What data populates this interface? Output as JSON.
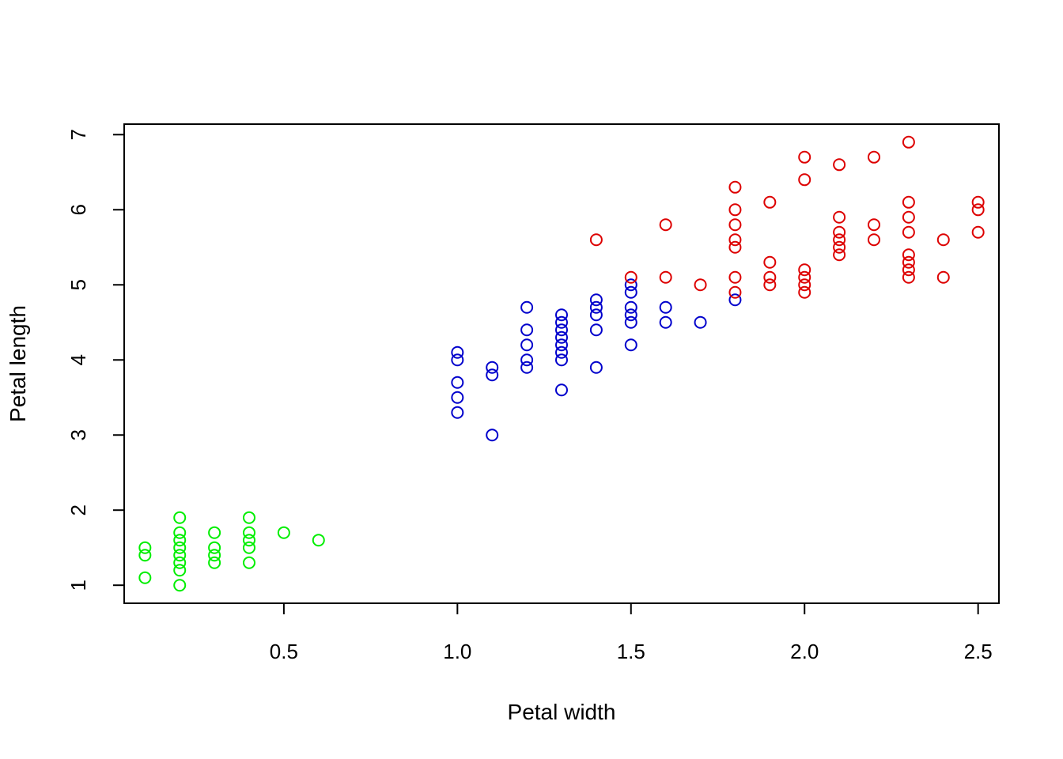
{
  "chart_data": {
    "type": "scatter",
    "title": "",
    "xlabel": "Petal width",
    "ylabel": "Petal length",
    "xlim": [
      0.04,
      2.56
    ],
    "ylim": [
      0.76,
      7.14
    ],
    "x_ticks": [
      0.5,
      1.0,
      1.5,
      2.0,
      2.5
    ],
    "x_tick_labels": [
      "0.5",
      "1.0",
      "1.5",
      "2.0",
      "2.5"
    ],
    "y_ticks": [
      1,
      2,
      3,
      4,
      5,
      6,
      7
    ],
    "y_tick_labels": [
      "1",
      "2",
      "3",
      "4",
      "5",
      "6",
      "7"
    ],
    "grid": false,
    "marker": "open-circle",
    "series": [
      {
        "color": "#00ee00",
        "points": [
          [
            0.1,
            1.1
          ],
          [
            0.1,
            1.4
          ],
          [
            0.1,
            1.5
          ],
          [
            0.2,
            1.0
          ],
          [
            0.2,
            1.2
          ],
          [
            0.2,
            1.3
          ],
          [
            0.2,
            1.4
          ],
          [
            0.2,
            1.5
          ],
          [
            0.2,
            1.6
          ],
          [
            0.2,
            1.7
          ],
          [
            0.2,
            1.9
          ],
          [
            0.3,
            1.3
          ],
          [
            0.3,
            1.4
          ],
          [
            0.3,
            1.5
          ],
          [
            0.3,
            1.7
          ],
          [
            0.4,
            1.3
          ],
          [
            0.4,
            1.5
          ],
          [
            0.4,
            1.6
          ],
          [
            0.4,
            1.7
          ],
          [
            0.4,
            1.9
          ],
          [
            0.5,
            1.7
          ],
          [
            0.6,
            1.6
          ]
        ]
      },
      {
        "color": "#0000cc",
        "points": [
          [
            1.0,
            3.3
          ],
          [
            1.0,
            3.5
          ],
          [
            1.0,
            3.7
          ],
          [
            1.0,
            4.0
          ],
          [
            1.0,
            4.1
          ],
          [
            1.1,
            3.0
          ],
          [
            1.1,
            3.8
          ],
          [
            1.1,
            3.9
          ],
          [
            1.2,
            3.9
          ],
          [
            1.2,
            4.0
          ],
          [
            1.2,
            4.2
          ],
          [
            1.2,
            4.4
          ],
          [
            1.2,
            4.7
          ],
          [
            1.3,
            3.6
          ],
          [
            1.3,
            4.0
          ],
          [
            1.3,
            4.1
          ],
          [
            1.3,
            4.2
          ],
          [
            1.3,
            4.3
          ],
          [
            1.3,
            4.4
          ],
          [
            1.3,
            4.5
          ],
          [
            1.3,
            4.6
          ],
          [
            1.4,
            3.9
          ],
          [
            1.4,
            4.4
          ],
          [
            1.4,
            4.6
          ],
          [
            1.4,
            4.7
          ],
          [
            1.4,
            4.8
          ],
          [
            1.5,
            4.2
          ],
          [
            1.5,
            4.5
          ],
          [
            1.5,
            4.6
          ],
          [
            1.5,
            4.7
          ],
          [
            1.5,
            4.9
          ],
          [
            1.5,
            5.0
          ],
          [
            1.6,
            4.5
          ],
          [
            1.6,
            4.7
          ],
          [
            1.7,
            4.5
          ],
          [
            1.8,
            4.8
          ]
        ]
      },
      {
        "color": "#dd0000",
        "points": [
          [
            1.4,
            5.6
          ],
          [
            1.5,
            5.1
          ],
          [
            1.6,
            5.1
          ],
          [
            1.6,
            5.8
          ],
          [
            1.7,
            5.0
          ],
          [
            1.8,
            4.9
          ],
          [
            1.8,
            5.1
          ],
          [
            1.8,
            5.5
          ],
          [
            1.8,
            5.6
          ],
          [
            1.8,
            5.8
          ],
          [
            1.8,
            6.0
          ],
          [
            1.8,
            6.3
          ],
          [
            1.9,
            5.0
          ],
          [
            1.9,
            5.1
          ],
          [
            1.9,
            5.3
          ],
          [
            1.9,
            6.1
          ],
          [
            2.0,
            4.9
          ],
          [
            2.0,
            5.0
          ],
          [
            2.0,
            5.1
          ],
          [
            2.0,
            5.2
          ],
          [
            2.0,
            6.4
          ],
          [
            2.0,
            6.7
          ],
          [
            2.1,
            5.4
          ],
          [
            2.1,
            5.5
          ],
          [
            2.1,
            5.6
          ],
          [
            2.1,
            5.7
          ],
          [
            2.1,
            5.9
          ],
          [
            2.1,
            6.6
          ],
          [
            2.2,
            5.6
          ],
          [
            2.2,
            5.8
          ],
          [
            2.2,
            6.7
          ],
          [
            2.3,
            5.1
          ],
          [
            2.3,
            5.2
          ],
          [
            2.3,
            5.3
          ],
          [
            2.3,
            5.4
          ],
          [
            2.3,
            5.7
          ],
          [
            2.3,
            5.9
          ],
          [
            2.3,
            6.1
          ],
          [
            2.3,
            6.9
          ],
          [
            2.4,
            5.1
          ],
          [
            2.4,
            5.6
          ],
          [
            2.5,
            5.7
          ],
          [
            2.5,
            6.0
          ],
          [
            2.5,
            6.1
          ]
        ]
      }
    ]
  }
}
